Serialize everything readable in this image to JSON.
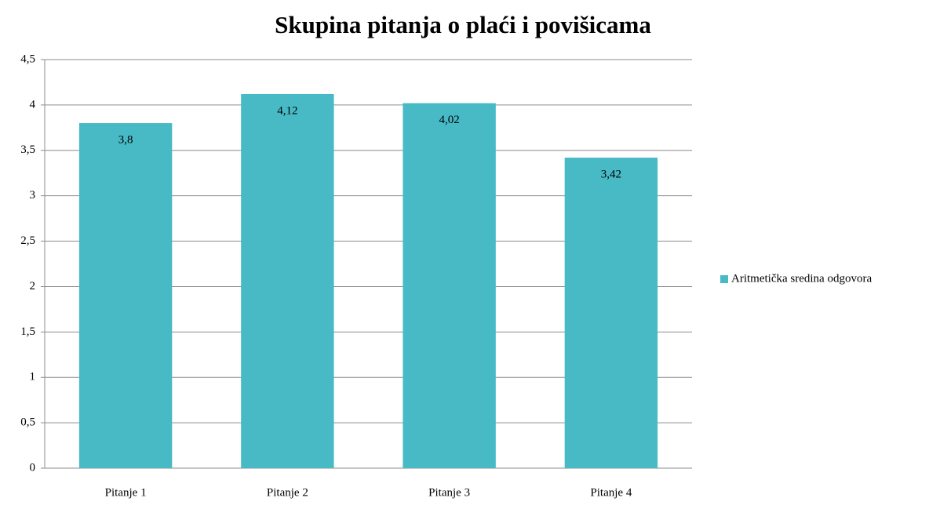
{
  "chart_data": {
    "type": "bar",
    "title": "Skupina pitanja o plaći i povišicama",
    "categories": [
      "Pitanje 1",
      "Pitanje 2",
      "Pitanje 3",
      "Pitanje 4"
    ],
    "series": [
      {
        "name": "Aritmetička sredina odgovora",
        "color": "#47bac6",
        "values": [
          3.8,
          4.12,
          4.02,
          3.42
        ],
        "value_labels": [
          "3,8",
          "4,12",
          "4,02",
          "3,42"
        ]
      }
    ],
    "ylim": [
      0,
      4.5
    ],
    "yticks": [
      0,
      {
        "value": 0.5,
        "label": "0,5"
      },
      1,
      {
        "value": 1.5,
        "label": "1,5"
      },
      2,
      {
        "value": 2.5,
        "label": "2,5"
      },
      3,
      {
        "value": 3.5,
        "label": "3,5"
      },
      4,
      {
        "value": 4.5,
        "label": "4,5"
      }
    ],
    "grid": true,
    "legend": "right"
  }
}
